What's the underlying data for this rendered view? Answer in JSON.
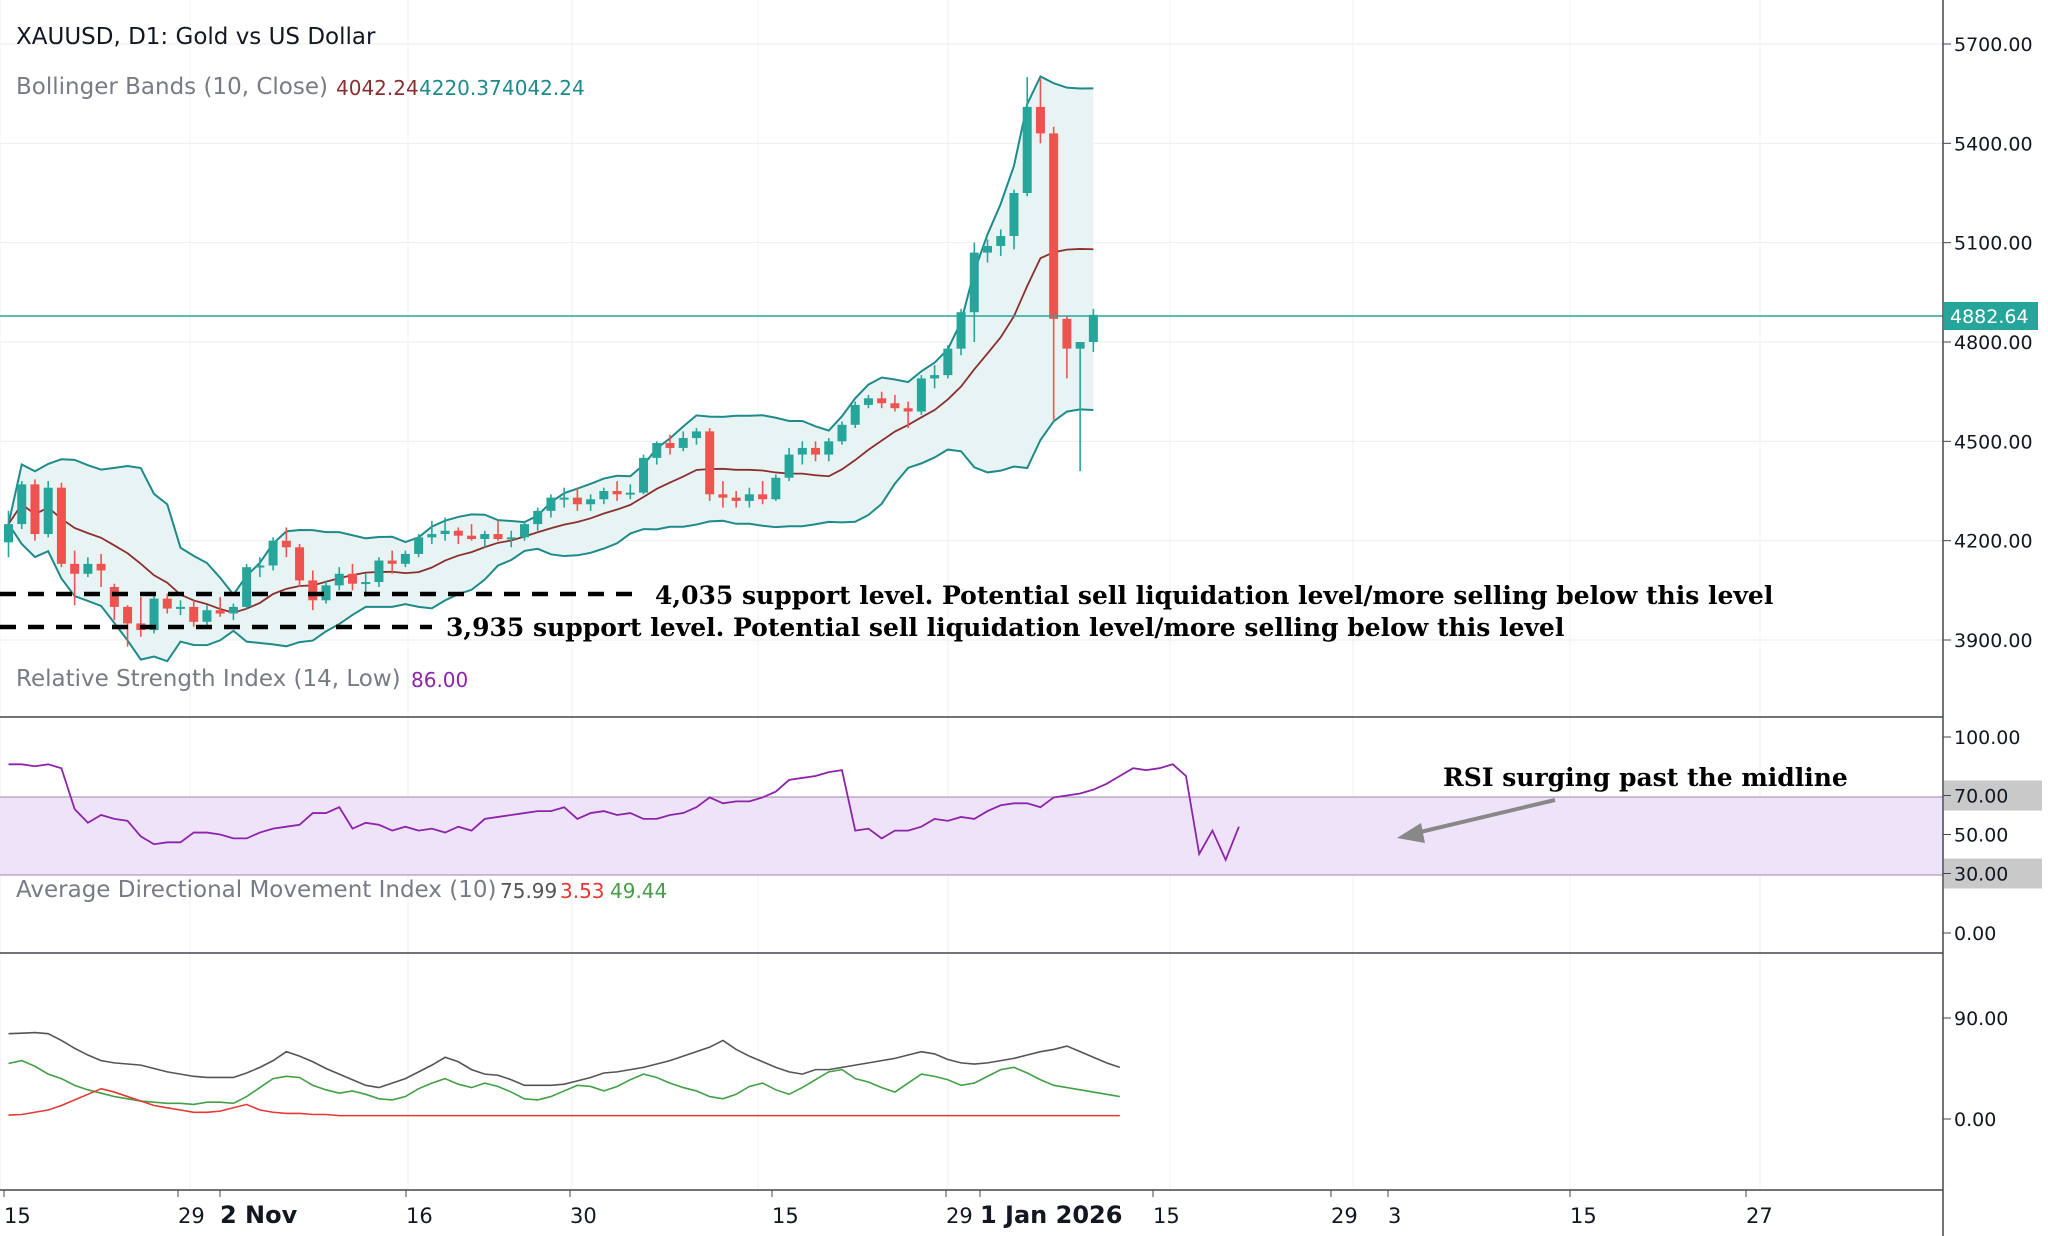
{
  "header": {
    "symbol_title": "XAUUSD, D1: Gold vs US Dollar",
    "bb_title": "Bollinger Bands (10, Close)",
    "bb_v1": "4042.24",
    "bb_v2": "4220.37",
    "bb_v3": "4042.24",
    "rsi_title": "Relative Strength Index (14, Low)",
    "rsi_value": "86.00",
    "adx_title": "Average Directional Movement Index (10)",
    "adx_v1": "75.99",
    "adx_v2": "3.53",
    "adx_v3": "49.44"
  },
  "annotations": {
    "support1": "4,035 support level. Potential sell liquidation level/more selling below this level",
    "support2": "3,935 support level. Potential sell liquidation level/more selling below this level",
    "rsi_note": "RSI surging past the midline"
  },
  "price_axis": {
    "ticks": [
      "5700.00",
      "5400.00",
      "5100.00",
      "4800.00",
      "4500.00",
      "4200.00",
      "3900.00"
    ],
    "current_price": "4882.64"
  },
  "rsi_axis": {
    "ticks": [
      "100.00",
      "70.00",
      "50.00",
      "30.00",
      "0.00"
    ]
  },
  "adx_axis": {
    "ticks": [
      "90.00",
      "0.00"
    ]
  },
  "time_axis": {
    "ticks": [
      "15",
      "29",
      "2 Nov",
      "16",
      "30",
      "15",
      "29",
      "1 Jan 2026",
      "15",
      "29",
      "3",
      "15",
      "27"
    ]
  },
  "colors": {
    "bull": "#26a69a",
    "bear": "#ef5350",
    "bb_band": "#1e8a8a",
    "bb_mid": "#8b2e2e",
    "bb_fill": "#e8f4f4",
    "rsi_line": "#8e24aa",
    "rsi_zone": "#efe3fa",
    "adx_line": "#555555",
    "di_plus": "#43a047",
    "di_minus": "#e53935",
    "price_line": "#26a69a"
  },
  "chart_data": [
    {
      "type": "candlestick",
      "title": "XAUUSD, D1: Gold vs US Dollar",
      "ylim": [
        3830,
        5790
      ],
      "x_range": [
        "2025-10-15",
        "2026-02-03"
      ],
      "support_levels": [
        4035,
        3935
      ],
      "last_price": 4882.64,
      "candles": [
        {
          "date": "2025-10-15",
          "open": 4195,
          "high": 4290,
          "low": 4150,
          "close": 4250
        },
        {
          "date": "2025-10-16",
          "open": 4250,
          "high": 4380,
          "low": 4235,
          "close": 4370
        },
        {
          "date": "2025-10-17",
          "open": 4370,
          "high": 4385,
          "low": 4200,
          "close": 4220
        },
        {
          "date": "2025-10-20",
          "open": 4220,
          "high": 4380,
          "low": 4210,
          "close": 4360
        },
        {
          "date": "2025-10-21",
          "open": 4360,
          "high": 4375,
          "low": 4120,
          "close": 4130
        },
        {
          "date": "2025-10-22",
          "open": 4130,
          "high": 4170,
          "low": 4005,
          "close": 4100
        },
        {
          "date": "2025-10-23",
          "open": 4100,
          "high": 4150,
          "low": 4090,
          "close": 4130
        },
        {
          "date": "2025-10-24",
          "open": 4130,
          "high": 4160,
          "low": 4060,
          "close": 4110
        },
        {
          "date": "2025-10-27",
          "open": 4060,
          "high": 4070,
          "low": 3960,
          "close": 4000
        },
        {
          "date": "2025-10-28",
          "open": 4000,
          "high": 4005,
          "low": 3880,
          "close": 3950
        },
        {
          "date": "2025-10-29",
          "open": 3950,
          "high": 4030,
          "low": 3910,
          "close": 3930
        },
        {
          "date": "2025-10-30",
          "open": 3930,
          "high": 4040,
          "low": 3920,
          "close": 4025
        },
        {
          "date": "2025-10-31",
          "open": 4025,
          "high": 4040,
          "low": 3980,
          "close": 3995
        },
        {
          "date": "2025-11-03",
          "open": 3995,
          "high": 4020,
          "low": 3975,
          "close": 4000
        },
        {
          "date": "2025-11-04",
          "open": 4000,
          "high": 4020,
          "low": 3940,
          "close": 3955
        },
        {
          "date": "2025-11-05",
          "open": 3955,
          "high": 4005,
          "low": 3940,
          "close": 3990
        },
        {
          "date": "2025-11-06",
          "open": 3990,
          "high": 4030,
          "low": 3970,
          "close": 3980
        },
        {
          "date": "2025-11-07",
          "open": 3980,
          "high": 4010,
          "low": 3960,
          "close": 4000
        },
        {
          "date": "2025-11-10",
          "open": 4000,
          "high": 4130,
          "low": 3995,
          "close": 4120
        },
        {
          "date": "2025-11-11",
          "open": 4120,
          "high": 4150,
          "low": 4090,
          "close": 4125
        },
        {
          "date": "2025-11-12",
          "open": 4125,
          "high": 4210,
          "low": 4110,
          "close": 4200
        },
        {
          "date": "2025-11-13",
          "open": 4200,
          "high": 4240,
          "low": 4150,
          "close": 4180
        },
        {
          "date": "2025-11-14",
          "open": 4180,
          "high": 4190,
          "low": 4060,
          "close": 4080
        },
        {
          "date": "2025-11-17",
          "open": 4080,
          "high": 4110,
          "low": 3990,
          "close": 4020
        },
        {
          "date": "2025-11-18",
          "open": 4020,
          "high": 4080,
          "low": 4010,
          "close": 4065
        },
        {
          "date": "2025-11-19",
          "open": 4065,
          "high": 4120,
          "low": 4050,
          "close": 4100
        },
        {
          "date": "2025-11-20",
          "open": 4100,
          "high": 4130,
          "low": 4050,
          "close": 4070
        },
        {
          "date": "2025-11-21",
          "open": 4070,
          "high": 4100,
          "low": 4030,
          "close": 4075
        },
        {
          "date": "2025-11-24",
          "open": 4075,
          "high": 4150,
          "low": 4060,
          "close": 4140
        },
        {
          "date": "2025-11-25",
          "open": 4140,
          "high": 4170,
          "low": 4100,
          "close": 4130
        },
        {
          "date": "2025-11-26",
          "open": 4130,
          "high": 4170,
          "low": 4120,
          "close": 4160
        },
        {
          "date": "2025-11-27",
          "open": 4160,
          "high": 4220,
          "low": 4150,
          "close": 4210
        },
        {
          "date": "2025-11-28",
          "open": 4210,
          "high": 4260,
          "low": 4190,
          "close": 4220
        },
        {
          "date": "2025-12-01",
          "open": 4220,
          "high": 4270,
          "low": 4200,
          "close": 4230
        },
        {
          "date": "2025-12-02",
          "open": 4230,
          "high": 4240,
          "low": 4190,
          "close": 4215
        },
        {
          "date": "2025-12-03",
          "open": 4215,
          "high": 4250,
          "low": 4200,
          "close": 4205
        },
        {
          "date": "2025-12-04",
          "open": 4205,
          "high": 4230,
          "low": 4180,
          "close": 4220
        },
        {
          "date": "2025-12-05",
          "open": 4220,
          "high": 4260,
          "low": 4200,
          "close": 4205
        },
        {
          "date": "2025-12-08",
          "open": 4205,
          "high": 4230,
          "low": 4180,
          "close": 4210
        },
        {
          "date": "2025-12-09",
          "open": 4210,
          "high": 4260,
          "low": 4200,
          "close": 4250
        },
        {
          "date": "2025-12-10",
          "open": 4250,
          "high": 4300,
          "low": 4230,
          "close": 4290
        },
        {
          "date": "2025-12-11",
          "open": 4290,
          "high": 4340,
          "low": 4270,
          "close": 4330
        },
        {
          "date": "2025-12-12",
          "open": 4330,
          "high": 4360,
          "low": 4300,
          "close": 4330
        },
        {
          "date": "2025-12-15",
          "open": 4330,
          "high": 4360,
          "low": 4290,
          "close": 4310
        },
        {
          "date": "2025-12-16",
          "open": 4310,
          "high": 4340,
          "low": 4290,
          "close": 4325
        },
        {
          "date": "2025-12-17",
          "open": 4325,
          "high": 4360,
          "low": 4310,
          "close": 4350
        },
        {
          "date": "2025-12-18",
          "open": 4350,
          "high": 4380,
          "low": 4320,
          "close": 4340
        },
        {
          "date": "2025-12-19",
          "open": 4340,
          "high": 4370,
          "low": 4325,
          "close": 4345
        },
        {
          "date": "2025-12-22",
          "open": 4345,
          "high": 4460,
          "low": 4340,
          "close": 4450
        },
        {
          "date": "2025-12-23",
          "open": 4450,
          "high": 4500,
          "low": 4430,
          "close": 4495
        },
        {
          "date": "2025-12-24",
          "open": 4495,
          "high": 4520,
          "low": 4460,
          "close": 4480
        },
        {
          "date": "2025-12-25",
          "open": 4480,
          "high": 4530,
          "low": 4470,
          "close": 4510
        },
        {
          "date": "2025-12-26",
          "open": 4510,
          "high": 4540,
          "low": 4490,
          "close": 4530
        },
        {
          "date": "2025-12-29",
          "open": 4530,
          "high": 4540,
          "low": 4320,
          "close": 4340
        },
        {
          "date": "2025-12-30",
          "open": 4340,
          "high": 4380,
          "low": 4300,
          "close": 4330
        },
        {
          "date": "2025-12-31",
          "open": 4330,
          "high": 4350,
          "low": 4300,
          "close": 4320
        },
        {
          "date": "2026-01-01",
          "open": 4320,
          "high": 4360,
          "low": 4300,
          "close": 4340
        },
        {
          "date": "2026-01-02",
          "open": 4340,
          "high": 4380,
          "low": 4310,
          "close": 4325
        },
        {
          "date": "2026-01-05",
          "open": 4325,
          "high": 4400,
          "low": 4320,
          "close": 4390
        },
        {
          "date": "2026-01-06",
          "open": 4390,
          "high": 4480,
          "low": 4380,
          "close": 4460
        },
        {
          "date": "2026-01-07",
          "open": 4460,
          "high": 4500,
          "low": 4430,
          "close": 4480
        },
        {
          "date": "2026-01-08",
          "open": 4480,
          "high": 4500,
          "low": 4440,
          "close": 4460
        },
        {
          "date": "2026-01-09",
          "open": 4460,
          "high": 4510,
          "low": 4440,
          "close": 4500
        },
        {
          "date": "2026-01-12",
          "open": 4500,
          "high": 4560,
          "low": 4490,
          "close": 4550
        },
        {
          "date": "2026-01-13",
          "open": 4550,
          "high": 4620,
          "low": 4540,
          "close": 4610
        },
        {
          "date": "2026-01-14",
          "open": 4610,
          "high": 4640,
          "low": 4600,
          "close": 4630
        },
        {
          "date": "2026-01-15",
          "open": 4630,
          "high": 4650,
          "low": 4600,
          "close": 4615
        },
        {
          "date": "2026-01-16",
          "open": 4615,
          "high": 4640,
          "low": 4590,
          "close": 4600
        },
        {
          "date": "2026-01-19",
          "open": 4600,
          "high": 4620,
          "low": 4540,
          "close": 4590
        },
        {
          "date": "2026-01-20",
          "open": 4590,
          "high": 4700,
          "low": 4580,
          "close": 4690
        },
        {
          "date": "2026-01-21",
          "open": 4690,
          "high": 4730,
          "low": 4660,
          "close": 4700
        },
        {
          "date": "2026-01-22",
          "open": 4700,
          "high": 4790,
          "low": 4690,
          "close": 4780
        },
        {
          "date": "2026-01-23",
          "open": 4780,
          "high": 4900,
          "low": 4760,
          "close": 4890
        },
        {
          "date": "2026-01-26",
          "open": 4890,
          "high": 5100,
          "low": 4800,
          "close": 5070
        },
        {
          "date": "2026-01-27",
          "open": 5070,
          "high": 5110,
          "low": 5040,
          "close": 5090
        },
        {
          "date": "2026-01-28",
          "open": 5090,
          "high": 5140,
          "low": 5060,
          "close": 5120
        },
        {
          "date": "2026-01-29",
          "open": 5120,
          "high": 5260,
          "low": 5080,
          "close": 5250
        },
        {
          "date": "2026-01-30",
          "open": 5250,
          "high": 5600,
          "low": 5240,
          "close": 5510
        },
        {
          "date": "2026-02-02",
          "open": 5510,
          "high": 5595,
          "low": 5400,
          "close": 5430
        },
        {
          "date": "2026-02-03",
          "open": 5430,
          "high": 5450,
          "low": 4565,
          "close": 4870
        },
        {
          "date": "2026-02-04",
          "open": 4870,
          "high": 4880,
          "low": 4690,
          "close": 4780
        },
        {
          "date": "2026-02-05",
          "open": 4780,
          "high": 4800,
          "low": 4410,
          "close": 4800
        },
        {
          "date": "2026-02-06",
          "open": 4800,
          "high": 4900,
          "low": 4770,
          "close": 4882
        }
      ]
    },
    {
      "type": "line",
      "title": "Relative Strength Index (14, Low)",
      "ylim": [
        0,
        100
      ],
      "bands": [
        30,
        70
      ],
      "values": [
        86,
        86,
        85,
        86,
        84,
        63,
        56,
        60,
        58,
        57,
        49,
        45,
        46,
        46,
        51,
        51,
        50,
        48,
        48,
        51,
        53,
        54,
        55,
        61,
        61,
        64,
        53,
        56,
        55,
        52,
        54,
        52,
        53,
        51,
        54,
        52,
        58,
        59,
        60,
        61,
        62,
        62,
        64,
        58,
        61,
        62,
        60,
        61,
        58,
        58,
        60,
        61,
        64,
        69,
        66,
        67,
        67,
        69,
        72,
        78,
        79,
        80,
        82,
        83,
        52,
        53,
        48,
        52,
        52,
        54,
        58,
        57,
        59,
        58,
        62,
        65,
        66,
        66,
        64,
        69,
        70,
        71,
        73,
        76,
        80,
        84,
        83,
        84,
        86,
        80,
        40,
        52,
        37,
        54
      ]
    },
    {
      "type": "line",
      "title": "Average Directional Movement Index (10)",
      "ylim": [
        -10,
        100
      ],
      "series": [
        {
          "name": "ADX",
          "values": [
            75.99,
            76.5,
            77,
            76,
            70,
            63,
            57,
            52,
            50,
            49,
            48,
            45,
            42,
            40,
            38,
            37,
            37,
            37,
            41,
            46,
            52,
            60,
            56,
            51,
            45,
            40,
            35,
            30,
            28,
            32,
            36,
            42,
            48,
            55,
            51,
            44,
            40,
            39,
            35,
            30,
            30,
            30,
            31,
            34,
            37,
            41,
            42,
            44,
            46,
            49,
            52,
            56,
            60,
            64,
            70,
            62,
            56,
            51,
            46,
            42,
            40,
            44,
            44,
            46,
            48,
            50,
            52,
            54,
            57,
            60,
            58,
            53,
            50,
            49,
            50,
            52,
            54,
            57,
            60,
            62,
            65,
            60,
            55,
            50,
            46
          ]
        },
        {
          "name": "+DI",
          "values": [
            49.44,
            52,
            47,
            40,
            36,
            30,
            26,
            23,
            20,
            18,
            16,
            15,
            14,
            14,
            13,
            15,
            15,
            14,
            20,
            28,
            36,
            38,
            37,
            30,
            26,
            23,
            25,
            22,
            18,
            17,
            20,
            27,
            32,
            36,
            31,
            28,
            32,
            29,
            24,
            18,
            17,
            20,
            25,
            30,
            29,
            25,
            29,
            35,
            40,
            37,
            32,
            28,
            25,
            20,
            18,
            22,
            29,
            32,
            26,
            22,
            28,
            35,
            42,
            44,
            36,
            33,
            28,
            24,
            32,
            40,
            38,
            35,
            30,
            32,
            38,
            44,
            46,
            41,
            35,
            30,
            28,
            26,
            24,
            22,
            20
          ]
        },
        {
          "name": "-DI",
          "values": [
            3.53,
            4,
            6,
            8,
            12,
            17,
            22,
            27,
            24,
            20,
            16,
            12,
            10,
            8,
            6,
            6,
            7,
            10,
            13,
            8,
            6,
            5,
            5,
            4,
            4,
            3,
            3,
            3,
            3,
            3,
            3,
            3,
            3,
            3,
            3,
            3,
            3,
            3,
            3,
            3,
            3,
            3,
            3,
            3,
            3,
            3,
            3,
            3,
            3,
            3,
            3,
            3,
            3,
            3,
            3,
            3,
            3,
            3,
            3,
            3,
            3,
            3,
            3,
            3,
            3,
            3,
            3,
            3,
            3,
            3,
            3,
            3,
            3,
            3,
            3,
            3,
            3,
            3,
            3,
            3,
            3,
            3,
            3,
            3,
            3
          ]
        }
      ]
    }
  ]
}
